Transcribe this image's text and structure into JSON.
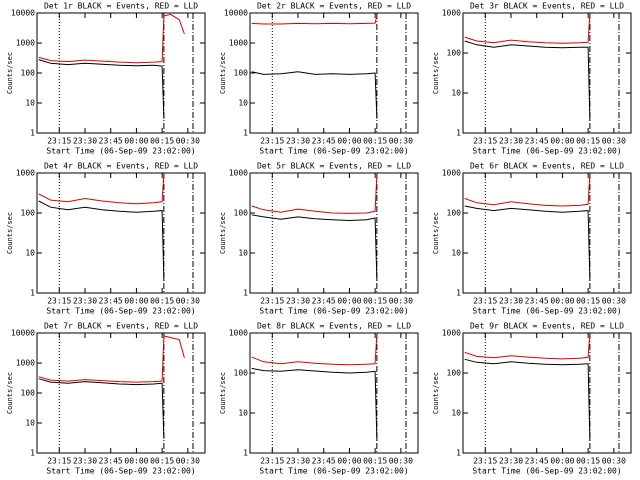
{
  "chart_data": [
    {
      "type": "line",
      "title": "Det 1r BLACK = Events, RED = LLD",
      "xlabel": "Start Time (06-Sep-09 23:02:00)",
      "ylabel": "Counts/sec",
      "log_y": true,
      "x": [
        "23:03",
        "23:10",
        "23:20",
        "23:30",
        "23:40",
        "23:50",
        "00:00",
        "00:10",
        "00:15",
        "00:16",
        "00:20",
        "00:25",
        "00:28"
      ],
      "xlim": [
        "23:02",
        "00:40"
      ],
      "xticks": [
        "23:15",
        "23:30",
        "23:45",
        "00:00",
        "00:15",
        "00:30"
      ],
      "ylim": [
        1,
        10000
      ],
      "yticks": [
        1,
        10,
        100,
        1000,
        10000
      ],
      "vlines": {
        "dotted": "23:15",
        "dashdot": [
          "00:16",
          "00:33"
        ]
      },
      "series": [
        {
          "color": "#000000",
          "values": [
            280,
            210,
            190,
            210,
            195,
            180,
            175,
            180,
            170,
            3,
            null,
            null,
            null
          ]
        },
        {
          "color": "#e00000",
          "values": [
            330,
            260,
            240,
            270,
            250,
            230,
            220,
            230,
            240,
            8000,
            9000,
            6000,
            2000
          ]
        }
      ]
    },
    {
      "type": "line",
      "title": "Det 2r BLACK = Events, RED = LLD",
      "xlabel": "Start Time (06-Sep-09 23:02:00)",
      "ylabel": "Counts/sec",
      "log_y": true,
      "x": [
        "23:03",
        "23:10",
        "23:20",
        "23:30",
        "23:40",
        "23:50",
        "00:00",
        "00:10",
        "00:15",
        "00:16",
        "00:20",
        "00:25",
        "00:28"
      ],
      "xlim": [
        "23:02",
        "00:40"
      ],
      "xticks": [
        "23:15",
        "23:30",
        "23:45",
        "00:00",
        "00:15",
        "00:30"
      ],
      "ylim": [
        1,
        10000
      ],
      "yticks": [
        1,
        10,
        100,
        1000,
        10000
      ],
      "vlines": {
        "dotted": "23:15",
        "dashdot": [
          "00:16",
          "00:33"
        ]
      },
      "series": [
        {
          "color": "#000000",
          "values": [
            110,
            90,
            95,
            110,
            90,
            95,
            90,
            95,
            100,
            3,
            null,
            null,
            null
          ]
        },
        {
          "color": "#e00000",
          "values": [
            4500,
            4300,
            4300,
            4500,
            4400,
            4500,
            4400,
            4500,
            4600,
            8000,
            null,
            null,
            null
          ]
        }
      ]
    },
    {
      "type": "line",
      "title": "Det 3r BLACK = Events, RED = LLD",
      "xlabel": "Start Time (06-Sep-09 23:02:00)",
      "ylabel": "Counts/sec",
      "log_y": true,
      "x": [
        "23:03",
        "23:10",
        "23:20",
        "23:30",
        "23:40",
        "23:50",
        "00:00",
        "00:10",
        "00:15",
        "00:16",
        "00:20",
        "00:25",
        "00:28"
      ],
      "xlim": [
        "23:02",
        "00:40"
      ],
      "xticks": [
        "23:15",
        "23:30",
        "23:45",
        "00:00",
        "00:15",
        "00:30"
      ],
      "ylim": [
        1,
        1000
      ],
      "yticks": [
        1,
        10,
        100,
        1000
      ],
      "vlines": {
        "dotted": "23:15",
        "dashdot": [
          "00:16",
          "00:33"
        ]
      },
      "series": [
        {
          "color": "#000000",
          "values": [
            200,
            160,
            140,
            160,
            150,
            140,
            135,
            140,
            140,
            2,
            null,
            null,
            null
          ]
        },
        {
          "color": "#e00000",
          "values": [
            250,
            200,
            180,
            210,
            190,
            180,
            175,
            180,
            185,
            1000,
            null,
            null,
            null
          ]
        }
      ]
    },
    {
      "type": "line",
      "title": "Det 4r BLACK = Events, RED = LLD",
      "xlabel": "Start Time (06-Sep-09 23:02:00)",
      "ylabel": "Counts/sec",
      "log_y": true,
      "x": [
        "23:03",
        "23:10",
        "23:20",
        "23:30",
        "23:40",
        "23:50",
        "00:00",
        "00:10",
        "00:15",
        "00:16",
        "00:20",
        "00:25",
        "00:28"
      ],
      "xlim": [
        "23:02",
        "00:40"
      ],
      "xticks": [
        "23:15",
        "23:30",
        "23:45",
        "00:00",
        "00:15",
        "00:30"
      ],
      "ylim": [
        1,
        1000
      ],
      "yticks": [
        1,
        10,
        100,
        1000
      ],
      "vlines": {
        "dotted": "23:15",
        "dashdot": [
          "00:16",
          "00:33"
        ]
      },
      "series": [
        {
          "color": "#000000",
          "values": [
            200,
            140,
            120,
            140,
            120,
            110,
            105,
            110,
            115,
            2,
            null,
            null,
            null
          ]
        },
        {
          "color": "#e00000",
          "values": [
            300,
            210,
            190,
            230,
            200,
            180,
            170,
            180,
            190,
            1000,
            null,
            null,
            null
          ]
        }
      ]
    },
    {
      "type": "line",
      "title": "Det 5r BLACK = Events, RED = LLD",
      "xlabel": "Start Time (06-Sep-09 23:02:00)",
      "ylabel": "Counts/sec",
      "log_y": true,
      "x": [
        "23:03",
        "23:10",
        "23:20",
        "23:30",
        "23:40",
        "23:50",
        "00:00",
        "00:10",
        "00:15",
        "00:16",
        "00:20",
        "00:25",
        "00:28"
      ],
      "xlim": [
        "23:02",
        "00:40"
      ],
      "xticks": [
        "23:15",
        "23:30",
        "23:45",
        "00:00",
        "00:15",
        "00:30"
      ],
      "ylim": [
        1,
        1000
      ],
      "yticks": [
        1,
        10,
        100,
        1000
      ],
      "vlines": {
        "dotted": "23:15",
        "dashdot": [
          "00:16",
          "00:33"
        ]
      },
      "series": [
        {
          "color": "#000000",
          "values": [
            90,
            80,
            70,
            80,
            72,
            68,
            65,
            68,
            75,
            2,
            null,
            null,
            null
          ]
        },
        {
          "color": "#e00000",
          "values": [
            150,
            120,
            105,
            125,
            110,
            100,
            98,
            100,
            110,
            1000,
            null,
            null,
            null
          ]
        }
      ]
    },
    {
      "type": "line",
      "title": "Det 6r BLACK = Events, RED = LLD",
      "xlabel": "Start Time (06-Sep-09 23:02:00)",
      "ylabel": "Counts/sec",
      "log_y": true,
      "x": [
        "23:03",
        "23:10",
        "23:20",
        "23:30",
        "23:40",
        "23:50",
        "00:00",
        "00:10",
        "00:15",
        "00:16",
        "00:20",
        "00:25",
        "00:28"
      ],
      "xlim": [
        "23:02",
        "00:40"
      ],
      "xticks": [
        "23:15",
        "23:30",
        "23:45",
        "00:00",
        "00:15",
        "00:30"
      ],
      "ylim": [
        1,
        1000
      ],
      "yticks": [
        1,
        10,
        100,
        1000
      ],
      "vlines": {
        "dotted": "23:15",
        "dashdot": [
          "00:16",
          "00:33"
        ]
      },
      "series": [
        {
          "color": "#000000",
          "values": [
            150,
            130,
            115,
            130,
            120,
            110,
            105,
            110,
            115,
            2,
            null,
            null,
            null
          ]
        },
        {
          "color": "#e00000",
          "values": [
            230,
            180,
            160,
            190,
            170,
            155,
            150,
            155,
            165,
            1000,
            null,
            null,
            null
          ]
        }
      ]
    },
    {
      "type": "line",
      "title": "Det 7r BLACK = Events, RED = LLD",
      "xlabel": "Start Time (06-Sep-09 23:02:00)",
      "ylabel": "Counts/sec",
      "log_y": true,
      "x": [
        "23:03",
        "23:10",
        "23:20",
        "23:30",
        "23:40",
        "23:50",
        "00:00",
        "00:10",
        "00:15",
        "00:16",
        "00:20",
        "00:25",
        "00:28"
      ],
      "xlim": [
        "23:02",
        "00:40"
      ],
      "xticks": [
        "23:15",
        "23:30",
        "23:45",
        "00:00",
        "00:15",
        "00:30"
      ],
      "ylim": [
        1,
        10000
      ],
      "yticks": [
        1,
        10,
        100,
        1000,
        10000
      ],
      "vlines": {
        "dotted": "23:15",
        "dashdot": [
          "00:16",
          "00:33"
        ]
      },
      "series": [
        {
          "color": "#000000",
          "values": [
            300,
            230,
            210,
            240,
            220,
            200,
            190,
            200,
            210,
            3,
            null,
            null,
            null
          ]
        },
        {
          "color": "#e00000",
          "values": [
            350,
            270,
            250,
            280,
            260,
            240,
            230,
            240,
            250,
            8000,
            7000,
            6000,
            1500
          ]
        }
      ]
    },
    {
      "type": "line",
      "title": "Det 8r BLACK = Events, RED = LLD",
      "xlabel": "Start Time (06-Sep-09 23:02:00)",
      "ylabel": "Counts/sec",
      "log_y": true,
      "x": [
        "23:03",
        "23:10",
        "23:20",
        "23:30",
        "23:40",
        "23:50",
        "00:00",
        "00:10",
        "00:15",
        "00:16",
        "00:20",
        "00:25",
        "00:28"
      ],
      "xlim": [
        "23:02",
        "00:40"
      ],
      "xticks": [
        "23:15",
        "23:30",
        "23:45",
        "00:00",
        "00:15",
        "00:30"
      ],
      "ylim": [
        1,
        1000
      ],
      "yticks": [
        1,
        10,
        100,
        1000
      ],
      "vlines": {
        "dotted": "23:15",
        "dashdot": [
          "00:16",
          "00:33"
        ]
      },
      "series": [
        {
          "color": "#000000",
          "values": [
            130,
            115,
            110,
            120,
            112,
            105,
            100,
            105,
            110,
            2,
            null,
            null,
            null
          ]
        },
        {
          "color": "#e00000",
          "values": [
            250,
            190,
            170,
            190,
            175,
            165,
            160,
            165,
            170,
            1000,
            null,
            null,
            null
          ]
        }
      ]
    },
    {
      "type": "line",
      "title": "Det 9r BLACK = Events, RED = LLD",
      "xlabel": "Start Time (06-Sep-09 23:02:00)",
      "ylabel": "Counts/sec",
      "log_y": true,
      "x": [
        "23:03",
        "23:10",
        "23:20",
        "23:30",
        "23:40",
        "23:50",
        "00:00",
        "00:10",
        "00:15",
        "00:16",
        "00:20",
        "00:25",
        "00:28"
      ],
      "xlim": [
        "23:02",
        "00:40"
      ],
      "xticks": [
        "23:15",
        "23:30",
        "23:45",
        "00:00",
        "00:15",
        "00:30"
      ],
      "ylim": [
        1,
        1000
      ],
      "yticks": [
        1,
        10,
        100,
        1000
      ],
      "vlines": {
        "dotted": "23:15",
        "dashdot": [
          "00:16",
          "00:33"
        ]
      },
      "series": [
        {
          "color": "#000000",
          "values": [
            220,
            185,
            170,
            190,
            175,
            165,
            160,
            165,
            170,
            2,
            null,
            null,
            null
          ]
        },
        {
          "color": "#e00000",
          "values": [
            330,
            260,
            240,
            270,
            250,
            235,
            225,
            235,
            245,
            1000,
            null,
            null,
            null
          ]
        }
      ]
    }
  ]
}
